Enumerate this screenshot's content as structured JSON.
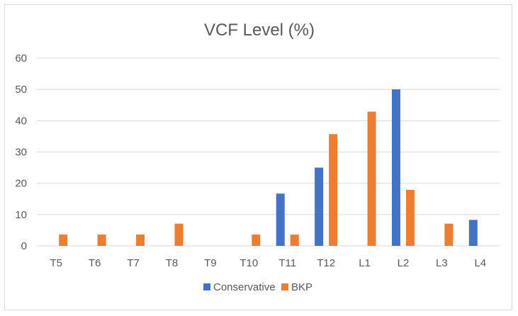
{
  "chart_data": {
    "type": "bar",
    "title": "VCF Level (%)",
    "xlabel": "",
    "ylabel": "",
    "ylim": [
      0,
      60
    ],
    "yticks": [
      0,
      10,
      20,
      30,
      40,
      50,
      60
    ],
    "categories": [
      "T5",
      "T6",
      "T7",
      "T8",
      "T9",
      "T10",
      "T11",
      "T12",
      "L1",
      "L2",
      "L3",
      "L4"
    ],
    "series": [
      {
        "name": "Conservative",
        "color": "#4472c4",
        "values": [
          0,
          0,
          0,
          0,
          0,
          0,
          16.7,
          25,
          0,
          50,
          0,
          8.3
        ]
      },
      {
        "name": "BKP",
        "color": "#ed7d31",
        "values": [
          3.6,
          3.6,
          3.6,
          7.1,
          0,
          3.6,
          3.6,
          35.7,
          42.9,
          17.9,
          7.1,
          0
        ]
      }
    ],
    "grid": true,
    "legend_position": "bottom"
  }
}
